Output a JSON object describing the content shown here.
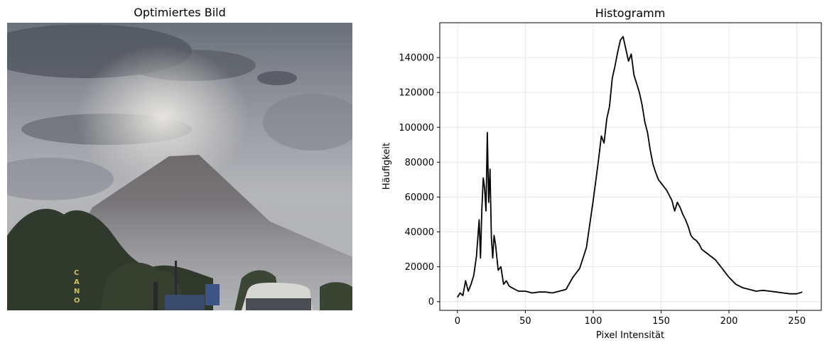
{
  "left_panel": {
    "title": "Optimiertes Bild",
    "sign_text": "CANO"
  },
  "chart_data": {
    "type": "line",
    "title": "Histogramm",
    "xlabel": "Pixel Intensität",
    "ylabel": "Häufigkeit",
    "xlim": [
      -13,
      268
    ],
    "ylim": [
      -5000,
      160000
    ],
    "xticks": [
      0,
      50,
      100,
      150,
      200,
      250
    ],
    "yticks": [
      0,
      20000,
      40000,
      60000,
      80000,
      100000,
      120000,
      140000
    ],
    "grid": true,
    "line_color": "#000000",
    "series": [
      {
        "x": [
          0,
          2,
          4,
          6,
          8,
          10,
          12,
          14,
          16,
          17,
          18,
          19,
          20,
          21,
          22,
          23,
          24,
          25,
          26,
          27,
          28,
          30,
          32,
          34,
          36,
          38,
          40,
          45,
          50,
          55,
          60,
          65,
          70,
          75,
          80,
          85,
          90,
          95,
          100,
          102,
          104,
          106,
          108,
          110,
          112,
          114,
          116,
          118,
          120,
          122,
          124,
          126,
          128,
          130,
          132,
          134,
          136,
          138,
          140,
          142,
          144,
          146,
          148,
          150,
          152,
          154,
          156,
          158,
          160,
          162,
          164,
          166,
          168,
          170,
          172,
          174,
          176,
          178,
          180,
          185,
          190,
          195,
          200,
          205,
          210,
          215,
          220,
          225,
          230,
          235,
          240,
          245,
          250,
          254
        ],
        "y": [
          2500,
          5000,
          3500,
          12000,
          6000,
          10000,
          15000,
          26000,
          47000,
          25000,
          53000,
          71000,
          65000,
          52000,
          97000,
          57000,
          76000,
          37000,
          25000,
          38000,
          33000,
          18000,
          20000,
          10000,
          12000,
          9000,
          8000,
          6000,
          6000,
          5000,
          5500,
          5500,
          5000,
          6000,
          7000,
          14000,
          19000,
          31000,
          58000,
          70000,
          82000,
          95000,
          91000,
          105000,
          112000,
          128000,
          135000,
          143000,
          150000,
          152000,
          145000,
          138000,
          142000,
          130000,
          125000,
          120000,
          113000,
          103000,
          97000,
          87000,
          79000,
          74000,
          70000,
          68000,
          66000,
          64000,
          61000,
          58000,
          52000,
          57000,
          54000,
          50000,
          47000,
          43000,
          38000,
          36000,
          35000,
          33000,
          30000,
          27000,
          24000,
          19000,
          14000,
          10000,
          8000,
          7000,
          6000,
          6500,
          6000,
          5500,
          5000,
          4500,
          4500,
          5500
        ]
      }
    ]
  }
}
